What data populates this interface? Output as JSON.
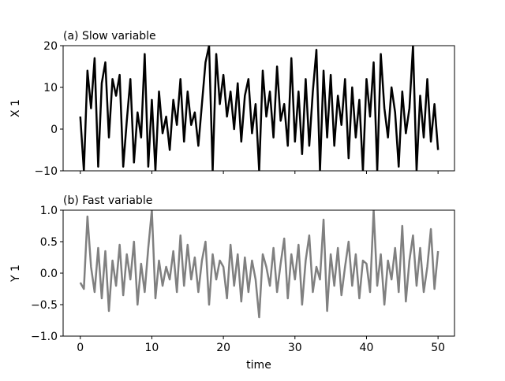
{
  "chart_data": [
    {
      "type": "line",
      "title": "(a) Slow variable",
      "ylabel": "X 1",
      "x": [
        0,
        0.5,
        1,
        1.5,
        2,
        2.5,
        3,
        3.5,
        4,
        4.5,
        5,
        5.5,
        6,
        6.5,
        7,
        7.5,
        8,
        8.5,
        9,
        9.5,
        10,
        10.5,
        11,
        11.5,
        12,
        12.5,
        13,
        13.5,
        14,
        14.5,
        15,
        15.5,
        16,
        16.5,
        17,
        17.5,
        18,
        18.5,
        19,
        19.5,
        20,
        20.5,
        21,
        21.5,
        22,
        22.5,
        23,
        23.5,
        24,
        24.5,
        25,
        25.5,
        26,
        26.5,
        27,
        27.5,
        28,
        28.5,
        29,
        29.5,
        30,
        30.5,
        31,
        31.5,
        32,
        32.5,
        33,
        33.5,
        34,
        34.5,
        35,
        35.5,
        36,
        36.5,
        37,
        37.5,
        38,
        38.5,
        39,
        39.5,
        40,
        40.5,
        41,
        41.5,
        42,
        42.5,
        43,
        43.5,
        44,
        44.5,
        45,
        45.5,
        46,
        46.5,
        47,
        47.5,
        48,
        48.5,
        49,
        49.5,
        50
      ],
      "series": [
        {
          "color": "#000000",
          "values": [
            3,
            -10,
            14,
            5,
            17,
            -9,
            11,
            16,
            -2,
            12,
            8,
            13,
            -9,
            2,
            12,
            -8,
            4,
            -2,
            18,
            -9,
            7,
            -10,
            9,
            -1,
            3,
            -5,
            7,
            1,
            12,
            -3,
            9,
            1,
            4,
            -4,
            6,
            16,
            20,
            -10,
            18,
            6,
            13,
            3,
            9,
            0,
            11,
            -3,
            8,
            12,
            -1,
            6,
            -10,
            14,
            3,
            9,
            -2,
            15,
            2,
            6,
            -4,
            17,
            -3,
            9,
            -6,
            12,
            -4,
            9,
            19,
            -10,
            14,
            -2,
            13,
            -4,
            8,
            1,
            12,
            -7,
            10,
            -2,
            7,
            -10,
            12,
            3,
            16,
            -10,
            18,
            5,
            -2,
            10,
            4,
            -9,
            9,
            -1,
            5,
            20,
            -10,
            8,
            -2,
            12,
            -3,
            6,
            -5
          ]
        }
      ],
      "xlim": [
        -2.4,
        52.3
      ],
      "xticks": [
        0,
        10,
        20,
        30,
        40,
        50
      ],
      "ylim": [
        -10,
        20
      ],
      "yticks": [
        {
          "value": -10,
          "label": "−10"
        },
        0,
        10,
        20
      ]
    },
    {
      "type": "line",
      "title": "(b) Fast variable",
      "ylabel": "Y 1",
      "xlabel": "time",
      "x": [
        0,
        0.5,
        1,
        1.5,
        2,
        2.5,
        3,
        3.5,
        4,
        4.5,
        5,
        5.5,
        6,
        6.5,
        7,
        7.5,
        8,
        8.5,
        9,
        9.5,
        10,
        10.5,
        11,
        11.5,
        12,
        12.5,
        13,
        13.5,
        14,
        14.5,
        15,
        15.5,
        16,
        16.5,
        17,
        17.5,
        18,
        18.5,
        19,
        19.5,
        20,
        20.5,
        21,
        21.5,
        22,
        22.5,
        23,
        23.5,
        24,
        24.5,
        25,
        25.5,
        26,
        26.5,
        27,
        27.5,
        28,
        28.5,
        29,
        29.5,
        30,
        30.5,
        31,
        31.5,
        32,
        32.5,
        33,
        33.5,
        34,
        34.5,
        35,
        35.5,
        36,
        36.5,
        37,
        37.5,
        38,
        38.5,
        39,
        39.5,
        40,
        40.5,
        41,
        41.5,
        42,
        42.5,
        43,
        43.5,
        44,
        44.5,
        45,
        45.5,
        46,
        46.5,
        47,
        47.5,
        48,
        48.5,
        49,
        49.5,
        50
      ],
      "series": [
        {
          "color": "#808080",
          "values": [
            -0.15,
            -0.25,
            0.9,
            0.1,
            -0.3,
            0.4,
            -0.4,
            0.35,
            -0.6,
            0.2,
            -0.2,
            0.45,
            -0.35,
            0.3,
            -0.1,
            0.5,
            -0.5,
            0.15,
            -0.3,
            0.4,
            1.0,
            -0.4,
            0.2,
            -0.2,
            0.1,
            -0.1,
            0.35,
            -0.3,
            0.6,
            -0.2,
            0.45,
            -0.1,
            0.25,
            -0.3,
            0.2,
            0.5,
            -0.5,
            0.3,
            -0.1,
            0.2,
            0.1,
            -0.4,
            0.45,
            -0.2,
            0.3,
            -0.45,
            0.25,
            -0.3,
            0.2,
            -0.1,
            -0.7,
            0.3,
            0.1,
            -0.2,
            0.4,
            -0.3,
            0.15,
            0.55,
            -0.4,
            0.3,
            -0.1,
            0.45,
            -0.5,
            0.2,
            0.6,
            -0.3,
            0.1,
            -0.1,
            0.85,
            -0.6,
            0.3,
            -0.2,
            0.4,
            -0.35,
            0.1,
            0.5,
            -0.2,
            0.3,
            -0.4,
            0.2,
            0.15,
            -0.3,
            1.0,
            -0.2,
            0.3,
            -0.5,
            0.2,
            -0.1,
            0.4,
            -0.3,
            0.75,
            -0.45,
            0.2,
            0.6,
            -0.2,
            0.4,
            -0.3,
            0.1,
            0.7,
            -0.25,
            0.35
          ]
        }
      ],
      "xlim": [
        -2.4,
        52.3
      ],
      "xticks": [
        0,
        10,
        20,
        30,
        40,
        50
      ],
      "ylim": [
        -1,
        1
      ],
      "yticks": [
        {
          "value": -1,
          "label": "−1.0"
        },
        {
          "value": -0.5,
          "label": "−0.5"
        },
        {
          "value": 0,
          "label": "0.0"
        },
        {
          "value": 0.5,
          "label": "0.5"
        },
        {
          "value": 1,
          "label": "1.0"
        }
      ]
    }
  ]
}
